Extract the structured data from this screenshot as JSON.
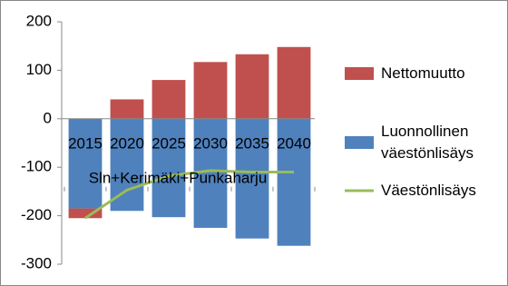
{
  "chart_data": {
    "type": "bar_line",
    "annotation": "Sln+Kerimäki+Punkaharju",
    "categories": [
      "2015",
      "2020",
      "2025",
      "2030",
      "2035",
      "2040"
    ],
    "series": [
      {
        "name": "Luonnollinen väestönlisäys",
        "type": "bar",
        "color": "#4f81bd",
        "values": [
          -185,
          -190,
          -203,
          -225,
          -247,
          -262
        ]
      },
      {
        "name": "Nettomuutto",
        "type": "bar",
        "color": "#c0504d",
        "values": [
          -20,
          40,
          80,
          117,
          133,
          148
        ]
      },
      {
        "name": "Väestönlisäys",
        "type": "line",
        "color": "#9bbb59",
        "values": [
          -205,
          -147,
          -118,
          -107,
          -110,
          -110
        ]
      }
    ],
    "ylim": [
      -300,
      200
    ],
    "yticks": [
      -300,
      -200,
      -100,
      0,
      100,
      200
    ],
    "grid": false
  }
}
